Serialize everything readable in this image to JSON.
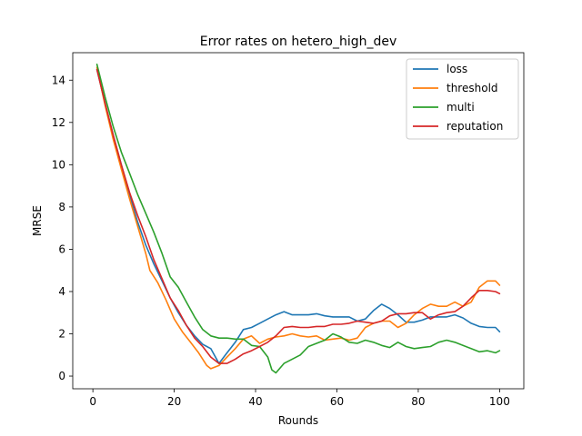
{
  "chart_data": {
    "type": "line",
    "title": "Error rates on hetero_high_dev",
    "xlabel": "Rounds",
    "ylabel": "MRSE",
    "xlim": [
      -4.95,
      105.95
    ],
    "ylim": [
      -0.6,
      15.3
    ],
    "xticks": [
      0,
      20,
      40,
      60,
      80,
      100
    ],
    "yticks": [
      0,
      2,
      4,
      6,
      8,
      10,
      12,
      14
    ],
    "grid": false,
    "legend_position": "top-right",
    "series": [
      {
        "name": "loss",
        "color": "#1f77b4",
        "points": [
          [
            1,
            14.5
          ],
          [
            3,
            12.9
          ],
          [
            5,
            11.4
          ],
          [
            7,
            10.0
          ],
          [
            9,
            8.6
          ],
          [
            11,
            7.3
          ],
          [
            13,
            6.2
          ],
          [
            15,
            5.3
          ],
          [
            17,
            4.5
          ],
          [
            19,
            3.7
          ],
          [
            21,
            3.0
          ],
          [
            23,
            2.4
          ],
          [
            25,
            1.9
          ],
          [
            27,
            1.5
          ],
          [
            29,
            1.3
          ],
          [
            31,
            0.6
          ],
          [
            33,
            1.1
          ],
          [
            35,
            1.6
          ],
          [
            37,
            2.2
          ],
          [
            39,
            2.3
          ],
          [
            41,
            2.5
          ],
          [
            43,
            2.7
          ],
          [
            45,
            2.9
          ],
          [
            47,
            3.05
          ],
          [
            49,
            2.9
          ],
          [
            51,
            2.9
          ],
          [
            53,
            2.9
          ],
          [
            55,
            2.95
          ],
          [
            57,
            2.85
          ],
          [
            59,
            2.8
          ],
          [
            61,
            2.8
          ],
          [
            63,
            2.8
          ],
          [
            65,
            2.6
          ],
          [
            67,
            2.7
          ],
          [
            69,
            3.1
          ],
          [
            71,
            3.4
          ],
          [
            73,
            3.2
          ],
          [
            75,
            2.9
          ],
          [
            77,
            2.55
          ],
          [
            79,
            2.55
          ],
          [
            81,
            2.65
          ],
          [
            83,
            2.8
          ],
          [
            85,
            2.8
          ],
          [
            87,
            2.8
          ],
          [
            89,
            2.9
          ],
          [
            91,
            2.75
          ],
          [
            93,
            2.5
          ],
          [
            95,
            2.35
          ],
          [
            97,
            2.3
          ],
          [
            99,
            2.3
          ],
          [
            100,
            2.1
          ]
        ]
      },
      {
        "name": "threshold",
        "color": "#ff7f0e",
        "points": [
          [
            1,
            14.6
          ],
          [
            3,
            12.8
          ],
          [
            5,
            11.2
          ],
          [
            7,
            9.8
          ],
          [
            9,
            8.4
          ],
          [
            11,
            7.1
          ],
          [
            13,
            5.8
          ],
          [
            14,
            5.0
          ],
          [
            16,
            4.4
          ],
          [
            18,
            3.6
          ],
          [
            20,
            2.7
          ],
          [
            22,
            2.1
          ],
          [
            24,
            1.6
          ],
          [
            26,
            1.1
          ],
          [
            28,
            0.5
          ],
          [
            29,
            0.35
          ],
          [
            31,
            0.5
          ],
          [
            33,
            0.9
          ],
          [
            35,
            1.3
          ],
          [
            37,
            1.75
          ],
          [
            39,
            1.9
          ],
          [
            41,
            1.55
          ],
          [
            43,
            1.75
          ],
          [
            45,
            1.85
          ],
          [
            47,
            1.9
          ],
          [
            49,
            2.0
          ],
          [
            51,
            1.9
          ],
          [
            53,
            1.85
          ],
          [
            55,
            1.9
          ],
          [
            57,
            1.7
          ],
          [
            59,
            1.75
          ],
          [
            61,
            1.8
          ],
          [
            63,
            1.7
          ],
          [
            65,
            1.8
          ],
          [
            67,
            2.3
          ],
          [
            69,
            2.5
          ],
          [
            71,
            2.6
          ],
          [
            73,
            2.6
          ],
          [
            75,
            2.3
          ],
          [
            77,
            2.5
          ],
          [
            79,
            2.9
          ],
          [
            81,
            3.2
          ],
          [
            83,
            3.4
          ],
          [
            85,
            3.3
          ],
          [
            87,
            3.3
          ],
          [
            89,
            3.5
          ],
          [
            91,
            3.3
          ],
          [
            93,
            3.5
          ],
          [
            95,
            4.2
          ],
          [
            97,
            4.5
          ],
          [
            99,
            4.5
          ],
          [
            100,
            4.3
          ]
        ]
      },
      {
        "name": "multi",
        "color": "#2ca02c",
        "points": [
          [
            1,
            14.75
          ],
          [
            3,
            13.2
          ],
          [
            5,
            11.8
          ],
          [
            7,
            10.6
          ],
          [
            9,
            9.6
          ],
          [
            11,
            8.6
          ],
          [
            13,
            7.7
          ],
          [
            15,
            6.8
          ],
          [
            17,
            5.8
          ],
          [
            19,
            4.7
          ],
          [
            21,
            4.2
          ],
          [
            23,
            3.5
          ],
          [
            25,
            2.8
          ],
          [
            27,
            2.2
          ],
          [
            29,
            1.9
          ],
          [
            31,
            1.8
          ],
          [
            33,
            1.8
          ],
          [
            35,
            1.75
          ],
          [
            37,
            1.75
          ],
          [
            39,
            1.45
          ],
          [
            41,
            1.4
          ],
          [
            43,
            0.9
          ],
          [
            44,
            0.3
          ],
          [
            45,
            0.15
          ],
          [
            47,
            0.6
          ],
          [
            49,
            0.8
          ],
          [
            51,
            1.0
          ],
          [
            53,
            1.4
          ],
          [
            55,
            1.55
          ],
          [
            57,
            1.7
          ],
          [
            59,
            2.0
          ],
          [
            61,
            1.85
          ],
          [
            63,
            1.6
          ],
          [
            65,
            1.55
          ],
          [
            67,
            1.7
          ],
          [
            69,
            1.6
          ],
          [
            71,
            1.45
          ],
          [
            73,
            1.35
          ],
          [
            75,
            1.6
          ],
          [
            77,
            1.4
          ],
          [
            79,
            1.3
          ],
          [
            81,
            1.35
          ],
          [
            83,
            1.4
          ],
          [
            85,
            1.6
          ],
          [
            87,
            1.7
          ],
          [
            89,
            1.6
          ],
          [
            91,
            1.45
          ],
          [
            93,
            1.3
          ],
          [
            95,
            1.15
          ],
          [
            97,
            1.2
          ],
          [
            99,
            1.1
          ],
          [
            100,
            1.2
          ]
        ]
      },
      {
        "name": "reputation",
        "color": "#d62728",
        "points": [
          [
            1,
            14.5
          ],
          [
            3,
            12.9
          ],
          [
            5,
            11.4
          ],
          [
            7,
            10.0
          ],
          [
            9,
            8.7
          ],
          [
            11,
            7.6
          ],
          [
            13,
            6.6
          ],
          [
            15,
            5.5
          ],
          [
            17,
            4.6
          ],
          [
            19,
            3.7
          ],
          [
            21,
            3.1
          ],
          [
            23,
            2.4
          ],
          [
            25,
            1.8
          ],
          [
            27,
            1.4
          ],
          [
            29,
            0.9
          ],
          [
            31,
            0.6
          ],
          [
            33,
            0.6
          ],
          [
            35,
            0.8
          ],
          [
            37,
            1.05
          ],
          [
            39,
            1.2
          ],
          [
            41,
            1.4
          ],
          [
            43,
            1.6
          ],
          [
            45,
            1.9
          ],
          [
            47,
            2.3
          ],
          [
            49,
            2.35
          ],
          [
            51,
            2.3
          ],
          [
            53,
            2.3
          ],
          [
            55,
            2.35
          ],
          [
            57,
            2.35
          ],
          [
            59,
            2.45
          ],
          [
            61,
            2.45
          ],
          [
            63,
            2.5
          ],
          [
            65,
            2.6
          ],
          [
            67,
            2.55
          ],
          [
            69,
            2.5
          ],
          [
            71,
            2.6
          ],
          [
            73,
            2.85
          ],
          [
            75,
            2.95
          ],
          [
            77,
            2.95
          ],
          [
            79,
            3.0
          ],
          [
            81,
            3.0
          ],
          [
            83,
            2.7
          ],
          [
            85,
            2.9
          ],
          [
            87,
            3.0
          ],
          [
            89,
            3.05
          ],
          [
            91,
            3.3
          ],
          [
            93,
            3.7
          ],
          [
            95,
            4.05
          ],
          [
            97,
            4.05
          ],
          [
            99,
            4.0
          ],
          [
            100,
            3.9
          ]
        ]
      }
    ]
  }
}
